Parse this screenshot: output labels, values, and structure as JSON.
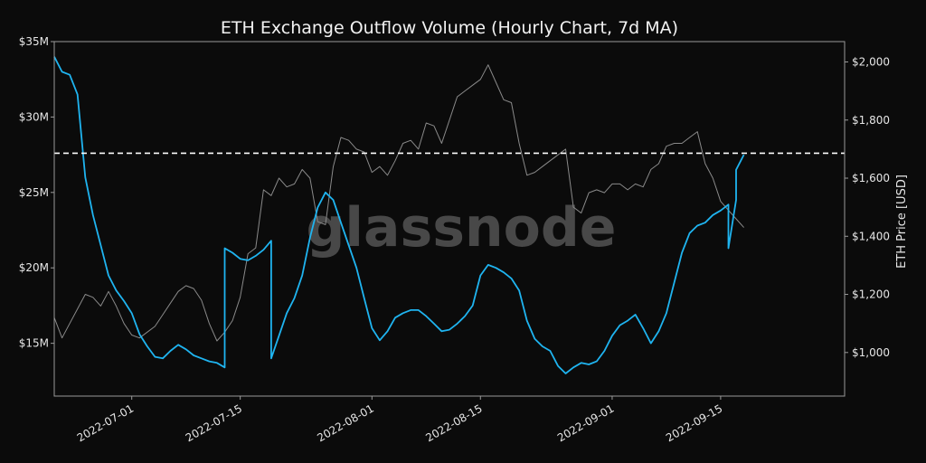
{
  "chart_data": {
    "type": "line",
    "title": "ETH Exchange Outflow Volume (Hourly Chart, 7d MA)",
    "watermark": "glassnode",
    "ylabel_right": "ETH Price [USD]",
    "ylabel_left": "",
    "x_ticks": [
      "2022-07-01",
      "2022-07-15",
      "2022-08-01",
      "2022-08-15",
      "2022-09-01",
      "2022-09-15"
    ],
    "x_tick_dates": [
      "2022-07-01",
      "2022-07-15",
      "2022-08-01",
      "2022-08-15",
      "2022-09-01",
      "2022-09-15"
    ],
    "xlim": [
      "2022-06-21",
      "2022-10-01"
    ],
    "y_left": {
      "ylim": [
        11.5,
        35
      ],
      "ticks": [
        15,
        20,
        25,
        30,
        35
      ],
      "tick_labels": [
        "$15M",
        "$20M",
        "$25M",
        "$30M",
        "$35M"
      ]
    },
    "y_right": {
      "ylim": [
        850,
        2070
      ],
      "ticks": [
        1000,
        1200,
        1400,
        1600,
        1800,
        2000
      ],
      "tick_labels": [
        "$1,000",
        "$1,200",
        "$1,400",
        "$1,600",
        "$1,800",
        "$2,000"
      ]
    },
    "reference_line": {
      "value": 27.6,
      "axis": "left",
      "style": "dashed",
      "color": "#ffffff"
    },
    "series": [
      {
        "axis": "left",
        "color": "#1fb4f0",
        "points": [
          [
            "2022-06-21",
            34.0
          ],
          [
            "2022-06-22",
            33.0
          ],
          [
            "2022-06-23",
            32.8
          ],
          [
            "2022-06-24",
            31.5
          ],
          [
            "2022-06-25",
            26.0
          ],
          [
            "2022-06-26",
            23.5
          ],
          [
            "2022-06-27",
            21.5
          ],
          [
            "2022-06-28",
            19.5
          ],
          [
            "2022-06-29",
            18.5
          ],
          [
            "2022-06-30",
            17.8
          ],
          [
            "2022-07-01",
            17.0
          ],
          [
            "2022-07-02",
            15.6
          ],
          [
            "2022-07-03",
            14.8
          ],
          [
            "2022-07-04",
            14.1
          ],
          [
            "2022-07-05",
            14.0
          ],
          [
            "2022-07-06",
            14.5
          ],
          [
            "2022-07-07",
            14.9
          ],
          [
            "2022-07-08",
            14.6
          ],
          [
            "2022-07-09",
            14.2
          ],
          [
            "2022-07-10",
            14.0
          ],
          [
            "2022-07-11",
            13.8
          ],
          [
            "2022-07-12",
            13.7
          ],
          [
            "2022-07-13",
            13.4
          ],
          [
            "2022-07-13",
            21.3
          ],
          [
            "2022-07-14",
            21.0
          ],
          [
            "2022-07-15",
            20.6
          ],
          [
            "2022-07-16",
            20.5
          ],
          [
            "2022-07-17",
            20.8
          ],
          [
            "2022-07-18",
            21.2
          ],
          [
            "2022-07-19",
            21.8
          ],
          [
            "2022-07-19",
            14.0
          ],
          [
            "2022-07-20",
            15.5
          ],
          [
            "2022-07-21",
            17.0
          ],
          [
            "2022-07-22",
            18.0
          ],
          [
            "2022-07-23",
            19.5
          ],
          [
            "2022-07-24",
            22.0
          ],
          [
            "2022-07-25",
            24.0
          ],
          [
            "2022-07-26",
            25.0
          ],
          [
            "2022-07-27",
            24.5
          ],
          [
            "2022-07-28",
            23.0
          ],
          [
            "2022-07-29",
            21.5
          ],
          [
            "2022-07-30",
            20.0
          ],
          [
            "2022-07-31",
            18.0
          ],
          [
            "2022-08-01",
            16.0
          ],
          [
            "2022-08-02",
            15.2
          ],
          [
            "2022-08-03",
            15.8
          ],
          [
            "2022-08-04",
            16.7
          ],
          [
            "2022-08-05",
            17.0
          ],
          [
            "2022-08-06",
            17.2
          ],
          [
            "2022-08-07",
            17.2
          ],
          [
            "2022-08-08",
            16.8
          ],
          [
            "2022-08-09",
            16.3
          ],
          [
            "2022-08-10",
            15.8
          ],
          [
            "2022-08-11",
            15.9
          ],
          [
            "2022-08-12",
            16.3
          ],
          [
            "2022-08-13",
            16.8
          ],
          [
            "2022-08-14",
            17.5
          ],
          [
            "2022-08-15",
            19.5
          ],
          [
            "2022-08-16",
            20.2
          ],
          [
            "2022-08-17",
            20.0
          ],
          [
            "2022-08-18",
            19.7
          ],
          [
            "2022-08-19",
            19.3
          ],
          [
            "2022-08-20",
            18.5
          ],
          [
            "2022-08-21",
            16.5
          ],
          [
            "2022-08-22",
            15.3
          ],
          [
            "2022-08-23",
            14.8
          ],
          [
            "2022-08-24",
            14.5
          ],
          [
            "2022-08-25",
            13.5
          ],
          [
            "2022-08-26",
            13.0
          ],
          [
            "2022-08-27",
            13.4
          ],
          [
            "2022-08-28",
            13.7
          ],
          [
            "2022-08-29",
            13.6
          ],
          [
            "2022-08-30",
            13.8
          ],
          [
            "2022-08-31",
            14.5
          ],
          [
            "2022-09-01",
            15.5
          ],
          [
            "2022-09-02",
            16.2
          ],
          [
            "2022-09-03",
            16.5
          ],
          [
            "2022-09-04",
            16.9
          ],
          [
            "2022-09-05",
            16.0
          ],
          [
            "2022-09-06",
            15.0
          ],
          [
            "2022-09-07",
            15.8
          ],
          [
            "2022-09-08",
            17.0
          ],
          [
            "2022-09-09",
            19.0
          ],
          [
            "2022-09-10",
            21.0
          ],
          [
            "2022-09-11",
            22.3
          ],
          [
            "2022-09-12",
            22.8
          ],
          [
            "2022-09-13",
            23.0
          ],
          [
            "2022-09-14",
            23.5
          ],
          [
            "2022-09-15",
            23.8
          ],
          [
            "2022-09-16",
            24.2
          ],
          [
            "2022-09-16",
            21.3
          ],
          [
            "2022-09-17",
            24.5
          ],
          [
            "2022-09-17",
            26.5
          ],
          [
            "2022-09-18",
            27.5
          ]
        ]
      },
      {
        "axis": "right",
        "color": "#8a8a8a",
        "points": [
          [
            "2022-06-21",
            1120
          ],
          [
            "2022-06-22",
            1050
          ],
          [
            "2022-06-23",
            1100
          ],
          [
            "2022-06-24",
            1150
          ],
          [
            "2022-06-25",
            1200
          ],
          [
            "2022-06-26",
            1190
          ],
          [
            "2022-06-27",
            1160
          ],
          [
            "2022-06-28",
            1210
          ],
          [
            "2022-06-29",
            1160
          ],
          [
            "2022-06-30",
            1100
          ],
          [
            "2022-07-01",
            1060
          ],
          [
            "2022-07-02",
            1050
          ],
          [
            "2022-07-03",
            1070
          ],
          [
            "2022-07-04",
            1090
          ],
          [
            "2022-07-05",
            1130
          ],
          [
            "2022-07-06",
            1170
          ],
          [
            "2022-07-07",
            1210
          ],
          [
            "2022-07-08",
            1230
          ],
          [
            "2022-07-09",
            1220
          ],
          [
            "2022-07-10",
            1180
          ],
          [
            "2022-07-11",
            1100
          ],
          [
            "2022-07-12",
            1040
          ],
          [
            "2022-07-13",
            1070
          ],
          [
            "2022-07-14",
            1110
          ],
          [
            "2022-07-15",
            1190
          ],
          [
            "2022-07-16",
            1340
          ],
          [
            "2022-07-17",
            1360
          ],
          [
            "2022-07-18",
            1560
          ],
          [
            "2022-07-19",
            1540
          ],
          [
            "2022-07-20",
            1600
          ],
          [
            "2022-07-21",
            1570
          ],
          [
            "2022-07-22",
            1580
          ],
          [
            "2022-07-23",
            1630
          ],
          [
            "2022-07-24",
            1600
          ],
          [
            "2022-07-25",
            1450
          ],
          [
            "2022-07-26",
            1440
          ],
          [
            "2022-07-27",
            1640
          ],
          [
            "2022-07-28",
            1740
          ],
          [
            "2022-07-29",
            1730
          ],
          [
            "2022-07-30",
            1700
          ],
          [
            "2022-07-31",
            1690
          ],
          [
            "2022-08-01",
            1620
          ],
          [
            "2022-08-02",
            1640
          ],
          [
            "2022-08-03",
            1610
          ],
          [
            "2022-08-04",
            1660
          ],
          [
            "2022-08-05",
            1720
          ],
          [
            "2022-08-06",
            1730
          ],
          [
            "2022-08-07",
            1700
          ],
          [
            "2022-08-08",
            1790
          ],
          [
            "2022-08-09",
            1780
          ],
          [
            "2022-08-10",
            1720
          ],
          [
            "2022-08-11",
            1800
          ],
          [
            "2022-08-12",
            1880
          ],
          [
            "2022-08-13",
            1900
          ],
          [
            "2022-08-14",
            1920
          ],
          [
            "2022-08-15",
            1940
          ],
          [
            "2022-08-16",
            1990
          ],
          [
            "2022-08-17",
            1930
          ],
          [
            "2022-08-18",
            1870
          ],
          [
            "2022-08-19",
            1860
          ],
          [
            "2022-08-20",
            1720
          ],
          [
            "2022-08-21",
            1610
          ],
          [
            "2022-08-22",
            1620
          ],
          [
            "2022-08-23",
            1640
          ],
          [
            "2022-08-24",
            1660
          ],
          [
            "2022-08-25",
            1680
          ],
          [
            "2022-08-26",
            1700
          ],
          [
            "2022-08-27",
            1500
          ],
          [
            "2022-08-28",
            1480
          ],
          [
            "2022-08-29",
            1550
          ],
          [
            "2022-08-30",
            1560
          ],
          [
            "2022-08-31",
            1550
          ],
          [
            "2022-09-01",
            1580
          ],
          [
            "2022-09-02",
            1580
          ],
          [
            "2022-09-03",
            1560
          ],
          [
            "2022-09-04",
            1580
          ],
          [
            "2022-09-05",
            1570
          ],
          [
            "2022-09-06",
            1630
          ],
          [
            "2022-09-07",
            1650
          ],
          [
            "2022-09-08",
            1710
          ],
          [
            "2022-09-09",
            1720
          ],
          [
            "2022-09-10",
            1720
          ],
          [
            "2022-09-11",
            1740
          ],
          [
            "2022-09-12",
            1760
          ],
          [
            "2022-09-13",
            1650
          ],
          [
            "2022-09-14",
            1600
          ],
          [
            "2022-09-15",
            1520
          ],
          [
            "2022-09-16",
            1490
          ],
          [
            "2022-09-17",
            1460
          ],
          [
            "2022-09-18",
            1430
          ]
        ]
      }
    ]
  }
}
